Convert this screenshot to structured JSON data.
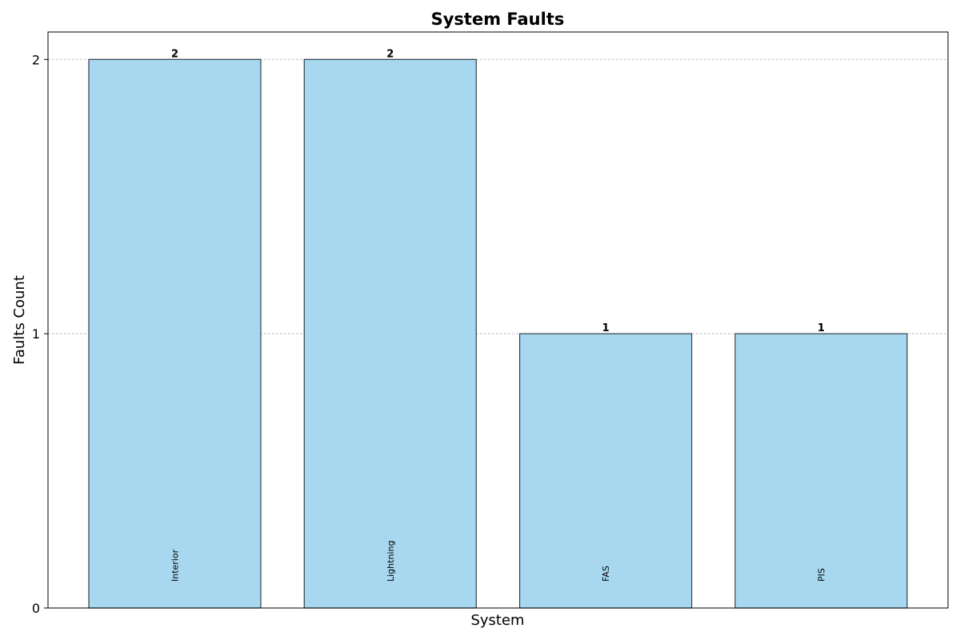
{
  "chart_data": {
    "type": "bar",
    "title": "System Faults",
    "xlabel": "System",
    "ylabel": "Faults Count",
    "categories": [
      "Interior",
      "Lightning",
      "FAS",
      "PIS"
    ],
    "values": [
      2,
      2,
      1,
      1
    ],
    "data_labels": [
      "2",
      "2",
      "1",
      "1"
    ],
    "ylim": [
      0,
      2.1
    ],
    "yticks": [
      0,
      1,
      2
    ],
    "ytick_labels": [
      "0",
      "1",
      "2"
    ],
    "grid": "horizontal dashed",
    "bar_color": "#a8d8ef",
    "bar_edge_color": "#2f3f4a",
    "category_label_placement": "inside bar bottom, rotated vertical"
  }
}
